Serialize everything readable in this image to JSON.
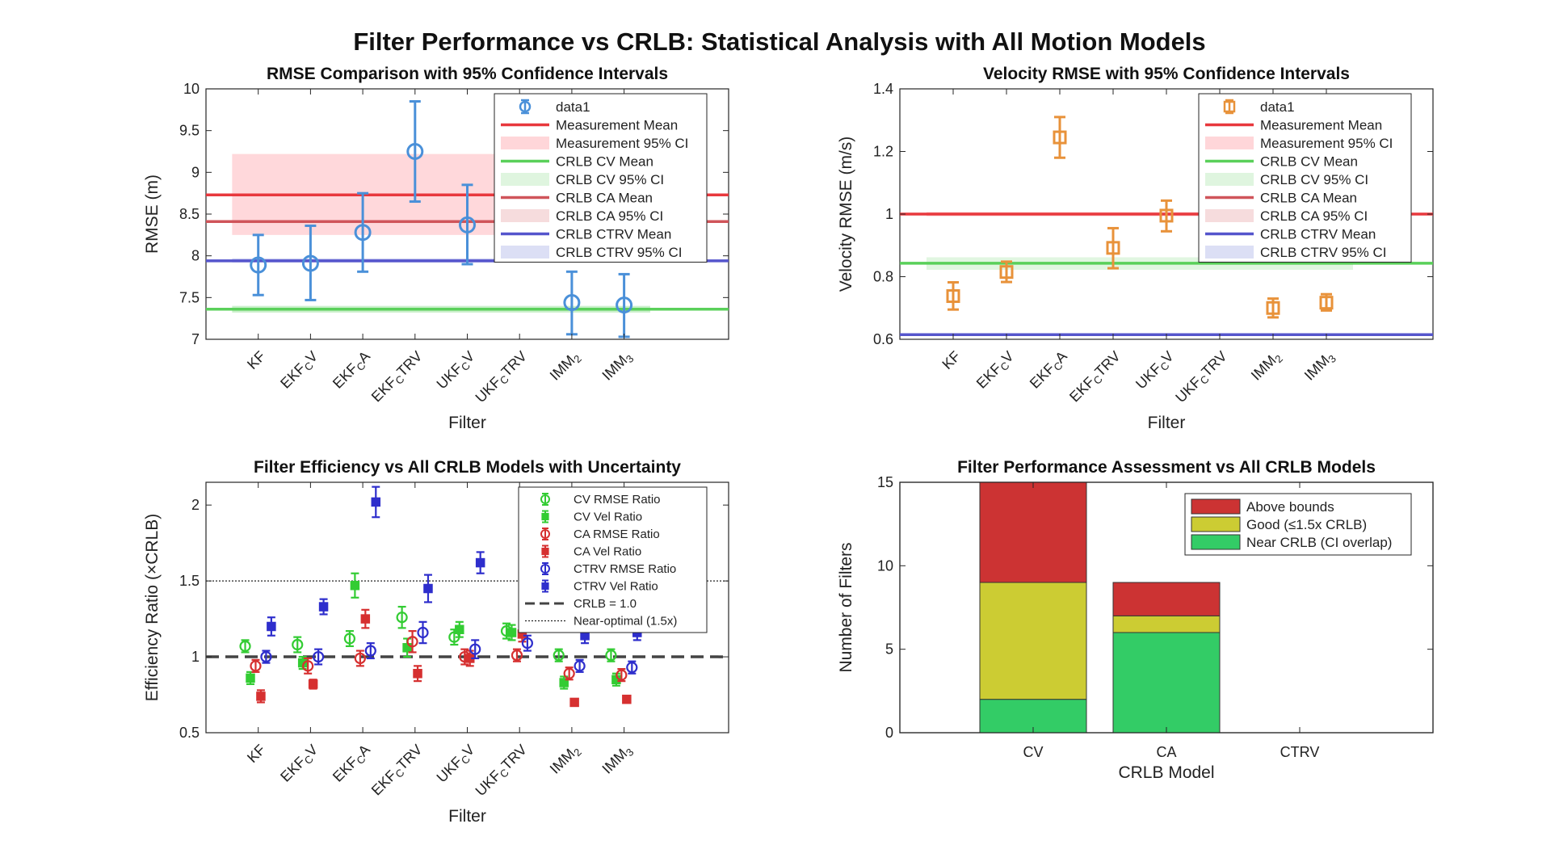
{
  "figure": {
    "suptitle": "Filter Performance vs CRLB: Statistical Analysis with All Motion Models"
  },
  "chart_data": [
    {
      "id": "rmse",
      "type": "scatter",
      "title": "RMSE Comparison with 95% Confidence Intervals",
      "xlabel": "Filter",
      "ylabel": "RMSE (m)",
      "ylim": [
        7,
        10
      ],
      "yticks": [
        7,
        7.5,
        8,
        8.5,
        9,
        9.5,
        10
      ],
      "ytick_labels": [
        "7",
        "7.5",
        "8",
        "8.5",
        "9",
        "9.5",
        "10"
      ],
      "xlim": [
        0,
        10
      ],
      "categories": [
        {
          "base": "KF",
          "sub": "",
          "suffix": ""
        },
        {
          "base": "EKF",
          "sub": "C",
          "suffix": "V"
        },
        {
          "base": "EKF",
          "sub": "C",
          "suffix": "A"
        },
        {
          "base": "EKF",
          "sub": "C",
          "suffix": "TRV"
        },
        {
          "base": "UKF",
          "sub": "C",
          "suffix": "V"
        },
        {
          "base": "UKF",
          "sub": "C",
          "suffix": "TRV"
        },
        {
          "base": "IMM",
          "sub": "2",
          "suffix": ""
        },
        {
          "base": "IMM",
          "sub": "3",
          "suffix": ""
        }
      ],
      "marker": "circle",
      "color": "#4a90d9",
      "points": [
        {
          "x": 1,
          "y": 7.89,
          "lo": 7.53,
          "hi": 8.25
        },
        {
          "x": 2,
          "y": 7.91,
          "lo": 7.47,
          "hi": 8.36
        },
        {
          "x": 3,
          "y": 8.28,
          "lo": 7.81,
          "hi": 8.75
        },
        {
          "x": 4,
          "y": 9.25,
          "lo": 8.65,
          "hi": 9.85
        },
        {
          "x": 5,
          "y": 8.37,
          "lo": 7.9,
          "hi": 8.85
        },
        {
          "x": 7,
          "y": 7.44,
          "lo": 7.06,
          "hi": 7.81
        },
        {
          "x": 8,
          "y": 7.41,
          "lo": 7.03,
          "hi": 7.78
        }
      ],
      "bands": [
        {
          "name": "Measurement 95% CI",
          "lo": 8.25,
          "hi": 9.22,
          "x0": 0.5,
          "x1": 8.5,
          "color": "#ffd6d9"
        },
        {
          "name": "CRLB CV 95% CI",
          "lo": 7.32,
          "hi": 7.4,
          "x0": 0.5,
          "x1": 8.5,
          "color": "#c7efc8"
        },
        {
          "name": "CRLB CA 95% CI",
          "lo": 8.39,
          "hi": 8.43,
          "x0": 0.5,
          "x1": 8.5,
          "color": "#f4d2d4"
        },
        {
          "name": "CRLB CTRV 95% CI",
          "lo": 7.92,
          "hi": 7.97,
          "x0": 0.5,
          "x1": 8.5,
          "color": "#d3d6f2"
        }
      ],
      "lines": [
        {
          "name": "Measurement Mean",
          "y": 8.73,
          "color": "#e8383d"
        },
        {
          "name": "CRLB CV Mean",
          "y": 7.36,
          "color": "#5ad05a"
        },
        {
          "name": "CRLB CA Mean",
          "y": 8.41,
          "color": "#d0545a"
        },
        {
          "name": "CRLB CTRV Mean",
          "y": 7.94,
          "color": "#5555cc"
        }
      ],
      "legend": {
        "placement": "top-right",
        "entries": [
          {
            "label": "data1",
            "kind": "marker"
          },
          {
            "label": "Measurement Mean",
            "kind": "line",
            "color": "#e8383d"
          },
          {
            "label": "Measurement 95% CI",
            "kind": "patch",
            "color": "#ffd6d9"
          },
          {
            "label": "CRLB CV Mean",
            "kind": "line",
            "color": "#5ad05a"
          },
          {
            "label": "CRLB CV 95% CI",
            "kind": "patch",
            "color": "#dff5df"
          },
          {
            "label": "CRLB CA Mean",
            "kind": "line",
            "color": "#d0545a"
          },
          {
            "label": "CRLB CA 95% CI",
            "kind": "patch",
            "color": "#f6dcdd"
          },
          {
            "label": "CRLB CTRV Mean",
            "kind": "line",
            "color": "#5555cc"
          },
          {
            "label": "CRLB CTRV 95% CI",
            "kind": "patch",
            "color": "#dcdff5"
          }
        ]
      }
    },
    {
      "id": "vel",
      "type": "scatter",
      "title": "Velocity RMSE with 95% Confidence Intervals",
      "xlabel": "Filter",
      "ylabel": "Velocity RMSE (m/s)",
      "ylim": [
        0.6,
        1.4
      ],
      "yticks": [
        0.6,
        0.8,
        1.0,
        1.2,
        1.4
      ],
      "ytick_labels": [
        "0.6",
        "0.8",
        "1",
        "1.2",
        "1.4"
      ],
      "xlim": [
        0,
        10
      ],
      "categories": [
        {
          "base": "KF",
          "sub": "",
          "suffix": ""
        },
        {
          "base": "EKF",
          "sub": "C",
          "suffix": "V"
        },
        {
          "base": "EKF",
          "sub": "C",
          "suffix": "A"
        },
        {
          "base": "EKF",
          "sub": "C",
          "suffix": "TRV"
        },
        {
          "base": "UKF",
          "sub": "C",
          "suffix": "V"
        },
        {
          "base": "UKF",
          "sub": "C",
          "suffix": "TRV"
        },
        {
          "base": "IMM",
          "sub": "2",
          "suffix": ""
        },
        {
          "base": "IMM",
          "sub": "3",
          "suffix": ""
        }
      ],
      "marker": "square",
      "color": "#e8923a",
      "points": [
        {
          "x": 1,
          "y": 0.738,
          "lo": 0.695,
          "hi": 0.782
        },
        {
          "x": 2,
          "y": 0.815,
          "lo": 0.783,
          "hi": 0.848
        },
        {
          "x": 3,
          "y": 1.245,
          "lo": 1.18,
          "hi": 1.31
        },
        {
          "x": 4,
          "y": 0.892,
          "lo": 0.827,
          "hi": 0.955
        },
        {
          "x": 5,
          "y": 0.995,
          "lo": 0.945,
          "hi": 1.043
        },
        {
          "x": 7,
          "y": 0.7,
          "lo": 0.67,
          "hi": 0.73
        },
        {
          "x": 8,
          "y": 0.717,
          "lo": 0.692,
          "hi": 0.744
        }
      ],
      "bands": [
        {
          "name": "Measurement 95% CI",
          "lo": 0.993,
          "hi": 1.007,
          "x0": 0.5,
          "x1": 8.5,
          "color": "#ffd6d9"
        },
        {
          "name": "CRLB CV 95% CI",
          "lo": 0.822,
          "hi": 0.862,
          "x0": 0.5,
          "x1": 8.5,
          "color": "#dff5df"
        },
        {
          "name": "CRLB CTRV 95% CI",
          "lo": 0.612,
          "hi": 0.618,
          "x0": 0.5,
          "x1": 8.5,
          "color": "#dcdff5"
        }
      ],
      "lines": [
        {
          "name": "Measurement Mean",
          "y": 1.0,
          "color": "#e8383d"
        },
        {
          "name": "CRLB CV Mean",
          "y": 0.843,
          "color": "#5ad05a"
        },
        {
          "name": "CRLB CTRV Mean",
          "y": 0.615,
          "color": "#5555cc"
        }
      ],
      "legend": {
        "placement": "top-right",
        "entries": [
          {
            "label": "data1",
            "kind": "marker"
          },
          {
            "label": "Measurement Mean",
            "kind": "line",
            "color": "#e8383d"
          },
          {
            "label": "Measurement 95% CI",
            "kind": "patch",
            "color": "#ffd6d9"
          },
          {
            "label": "CRLB CV Mean",
            "kind": "line",
            "color": "#5ad05a"
          },
          {
            "label": "CRLB CV 95% CI",
            "kind": "patch",
            "color": "#dff5df"
          },
          {
            "label": "CRLB CA Mean",
            "kind": "line",
            "color": "#d0545a"
          },
          {
            "label": "CRLB CA 95% CI",
            "kind": "patch",
            "color": "#f6dcdd"
          },
          {
            "label": "CRLB CTRV Mean",
            "kind": "line",
            "color": "#5555cc"
          },
          {
            "label": "CRLB CTRV 95% CI",
            "kind": "patch",
            "color": "#dcdff5"
          }
        ]
      }
    },
    {
      "id": "eff",
      "type": "scatter",
      "title": "Filter Efficiency vs All CRLB Models with Uncertainty",
      "xlabel": "Filter",
      "ylabel": "Efficiency Ratio (×CRLB)",
      "ylim": [
        0.5,
        2.15
      ],
      "yticks": [
        0.5,
        1.0,
        1.5,
        2.0
      ],
      "ytick_labels": [
        "0.5",
        "1",
        "1.5",
        "2"
      ],
      "xlim": [
        0,
        10
      ],
      "categories": [
        {
          "base": "KF",
          "sub": "",
          "suffix": ""
        },
        {
          "base": "EKF",
          "sub": "C",
          "suffix": "V"
        },
        {
          "base": "EKF",
          "sub": "C",
          "suffix": "A"
        },
        {
          "base": "EKF",
          "sub": "C",
          "suffix": "TRV"
        },
        {
          "base": "UKF",
          "sub": "C",
          "suffix": "V"
        },
        {
          "base": "UKF",
          "sub": "C",
          "suffix": "TRV"
        },
        {
          "base": "IMM",
          "sub": "2",
          "suffix": ""
        },
        {
          "base": "IMM",
          "sub": "3",
          "suffix": ""
        }
      ],
      "series": [
        {
          "name": "CV RMSE Ratio",
          "color": "#33cc33",
          "marker": "circle",
          "offset": -0.25,
          "values": [
            1.07,
            1.08,
            1.12,
            1.26,
            1.13,
            1.17,
            1.01,
            1.01
          ],
          "err": [
            0.04,
            0.05,
            0.05,
            0.07,
            0.05,
            0.05,
            0.04,
            0.04
          ]
        },
        {
          "name": "CV Vel Ratio",
          "color": "#33cc33",
          "marker": "square",
          "offset": -0.15,
          "values": [
            0.86,
            0.96,
            1.47,
            1.06,
            1.18,
            1.16,
            0.83,
            0.85
          ],
          "err": [
            0.04,
            0.04,
            0.08,
            0.06,
            0.05,
            0.05,
            0.04,
            0.04
          ]
        },
        {
          "name": "CA RMSE Ratio",
          "color": "#d63030",
          "marker": "circle",
          "offset": -0.05,
          "values": [
            0.94,
            0.94,
            0.99,
            1.1,
            1.0,
            1.01,
            0.89,
            0.88
          ],
          "err": [
            0.04,
            0.05,
            0.05,
            0.07,
            0.05,
            0.04,
            0.04,
            0.04
          ]
        },
        {
          "name": "CA Vel Ratio",
          "color": "#d63030",
          "marker": "square",
          "offset": 0.05,
          "values": [
            0.74,
            0.82,
            1.25,
            0.89,
            0.99,
            1.15,
            0.7,
            0.72
          ],
          "err": [
            0.04,
            0.03,
            0.06,
            0.05,
            0.05,
            0.05,
            0.02,
            0.02
          ]
        },
        {
          "name": "CTRV RMSE Ratio",
          "color": "#2e2ecc",
          "marker": "circle",
          "offset": 0.15,
          "values": [
            1.0,
            1.0,
            1.04,
            1.16,
            1.05,
            1.09,
            0.94,
            0.93
          ],
          "err": [
            0.04,
            0.05,
            0.05,
            0.07,
            0.06,
            0.05,
            0.04,
            0.04
          ]
        },
        {
          "name": "CTRV Vel Ratio",
          "color": "#2e2ecc",
          "marker": "square",
          "offset": 0.25,
          "values": [
            1.2,
            1.33,
            2.02,
            1.45,
            1.62,
            1.28,
            1.14,
            1.16
          ],
          "err": [
            0.06,
            0.05,
            0.1,
            0.09,
            0.07,
            0.05,
            0.05,
            0.05
          ]
        }
      ],
      "reference_lines": [
        {
          "name": "CRLB = 1.0",
          "y": 1.0,
          "style": "dashed",
          "color": "#444444"
        },
        {
          "name": "Near-optimal (1.5x)",
          "y": 1.5,
          "style": "dotted",
          "color": "#222222"
        }
      ],
      "legend": {
        "placement": "top-right",
        "entries": [
          {
            "label": "CV RMSE Ratio",
            "kind": "circle",
            "color": "#33cc33"
          },
          {
            "label": "CV Vel Ratio",
            "kind": "square",
            "color": "#33cc33"
          },
          {
            "label": "CA RMSE Ratio",
            "kind": "circle",
            "color": "#d63030"
          },
          {
            "label": "CA Vel Ratio",
            "kind": "square",
            "color": "#d63030"
          },
          {
            "label": "CTRV RMSE Ratio",
            "kind": "circle",
            "color": "#2e2ecc"
          },
          {
            "label": "CTRV Vel Ratio",
            "kind": "square",
            "color": "#2e2ecc"
          },
          {
            "label": "CRLB = 1.0",
            "kind": "dashed",
            "color": "#444444"
          },
          {
            "label": "Near-optimal (1.5x)",
            "kind": "dotted",
            "color": "#222222"
          }
        ]
      }
    },
    {
      "id": "assess",
      "type": "bar",
      "stacked": true,
      "title": "Filter Performance Assessment vs All CRLB Models",
      "xlabel": "CRLB Model",
      "ylabel": "Number of Filters",
      "categories": [
        "CV",
        "CA",
        "CTRV"
      ],
      "xlim": [
        0,
        4
      ],
      "ylim": [
        0,
        15
      ],
      "yticks": [
        0,
        5,
        10,
        15
      ],
      "ytick_labels": [
        "0",
        "5",
        "10",
        "15"
      ],
      "series": [
        {
          "name": "Near CRLB (CI overlap)",
          "color": "#33cc66",
          "values": [
            2,
            6,
            0
          ]
        },
        {
          "name": "Good (≤1.5x CRLB)",
          "color": "#cccc33",
          "values": [
            7,
            1,
            0
          ]
        },
        {
          "name": "Above bounds",
          "color": "#cc3333",
          "values": [
            6,
            2,
            0
          ]
        }
      ],
      "legend": {
        "placement": "top-right",
        "entries": [
          {
            "label": "Above bounds",
            "color": "#cc3333"
          },
          {
            "label": "Good (≤1.5x CRLB)",
            "color": "#cccc33"
          },
          {
            "label": "Near CRLB (CI overlap)",
            "color": "#33cc66"
          }
        ]
      }
    }
  ]
}
